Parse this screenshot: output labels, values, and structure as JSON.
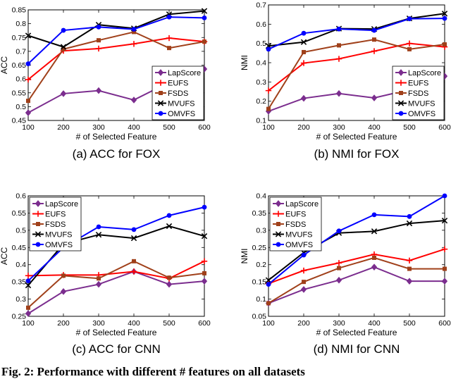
{
  "figure_caption": "Fig. 2: Performance with different # features on all datasets",
  "marker_styles": {
    "LapScore": {
      "color": "#7b2d8e",
      "marker": "diamond"
    },
    "EUFS": {
      "color": "#ff0000",
      "marker": "plus"
    },
    "FSDS": {
      "color": "#a0401a",
      "marker": "square"
    },
    "MVUFS": {
      "color": "#000000",
      "marker": "cross"
    },
    "OMVFS": {
      "color": "#0000ff",
      "marker": "circle"
    }
  },
  "chart_data": [
    {
      "type": "line",
      "caption": "(a) ACC for FOX",
      "xlabel": "# of Selected Feature",
      "ylabel": "ACC",
      "x": [
        100,
        200,
        300,
        400,
        500,
        600
      ],
      "xlim": [
        100,
        600
      ],
      "ylim": [
        0.45,
        0.85
      ],
      "xticks": [
        "100",
        "200",
        "300",
        "400",
        "500",
        "600"
      ],
      "yticks": [
        "0.45",
        "0.5",
        "0.55",
        "0.6",
        "0.65",
        "0.7",
        "0.75",
        "0.8",
        "0.85"
      ],
      "legend_position": "bottom-right",
      "series": [
        {
          "name": "LapScore",
          "values": [
            0.478,
            0.547,
            0.558,
            0.524,
            0.588,
            0.636
          ]
        },
        {
          "name": "EUFS",
          "values": [
            0.598,
            0.702,
            0.71,
            0.727,
            0.748,
            0.735
          ]
        },
        {
          "name": "FSDS",
          "values": [
            0.521,
            0.708,
            0.74,
            0.77,
            0.712,
            0.735
          ]
        },
        {
          "name": "MVUFS",
          "values": [
            0.757,
            0.716,
            0.796,
            0.783,
            0.834,
            0.846
          ]
        },
        {
          "name": "OMVFS",
          "values": [
            0.655,
            0.776,
            0.788,
            0.78,
            0.824,
            0.821
          ]
        }
      ]
    },
    {
      "type": "line",
      "caption": "(b) NMI for FOX",
      "xlabel": "# of Selected Feature",
      "ylabel": "NMI",
      "x": [
        100,
        200,
        300,
        400,
        500,
        600
      ],
      "xlim": [
        100,
        600
      ],
      "ylim": [
        0.1,
        0.7
      ],
      "xticks": [
        "100",
        "200",
        "300",
        "400",
        "500",
        "600"
      ],
      "yticks": [
        "0.1",
        "0.2",
        "0.3",
        "0.4",
        "0.5",
        "0.6",
        "0.7"
      ],
      "legend_position": "bottom-right",
      "series": [
        {
          "name": "LapScore",
          "values": [
            0.148,
            0.215,
            0.24,
            0.217,
            0.26,
            0.33
          ]
        },
        {
          "name": "EUFS",
          "values": [
            0.255,
            0.398,
            0.42,
            0.46,
            0.5,
            0.482
          ]
        },
        {
          "name": "FSDS",
          "values": [
            0.16,
            0.455,
            0.49,
            0.52,
            0.47,
            0.495
          ]
        },
        {
          "name": "MVUFS",
          "values": [
            0.487,
            0.507,
            0.577,
            0.575,
            0.63,
            0.655
          ]
        },
        {
          "name": "OMVFS",
          "values": [
            0.47,
            0.553,
            0.575,
            0.568,
            0.628,
            0.63
          ]
        }
      ]
    },
    {
      "type": "line",
      "caption": "(c) ACC for CNN",
      "xlabel": "# of Selected Feature",
      "ylabel": "ACC",
      "x": [
        100,
        200,
        300,
        400,
        500,
        600
      ],
      "xlim": [
        100,
        600
      ],
      "ylim": [
        0.25,
        0.6
      ],
      "xticks": [
        "100",
        "200",
        "300",
        "400",
        "500",
        "600"
      ],
      "yticks": [
        "0.25",
        "0.3",
        "0.35",
        "0.4",
        "0.45",
        "0.5",
        "0.55",
        "0.6"
      ],
      "legend_position": "top-left",
      "series": [
        {
          "name": "LapScore",
          "values": [
            0.258,
            0.322,
            0.343,
            0.38,
            0.343,
            0.352
          ]
        },
        {
          "name": "EUFS",
          "values": [
            0.368,
            0.37,
            0.37,
            0.38,
            0.36,
            0.41
          ]
        },
        {
          "name": "FSDS",
          "values": [
            0.275,
            0.368,
            0.36,
            0.41,
            0.362,
            0.375
          ]
        },
        {
          "name": "MVUFS",
          "values": [
            0.34,
            0.46,
            0.487,
            0.477,
            0.512,
            0.483
          ]
        },
        {
          "name": "OMVFS",
          "values": [
            0.353,
            0.45,
            0.51,
            0.502,
            0.543,
            0.567
          ]
        }
      ]
    },
    {
      "type": "line",
      "caption": "(d) NMI for CNN",
      "xlabel": "# of Selected Feature",
      "ylabel": "NMI",
      "x": [
        100,
        200,
        300,
        400,
        500,
        600
      ],
      "xlim": [
        100,
        600
      ],
      "ylim": [
        0.05,
        0.4
      ],
      "xticks": [
        "100",
        "200",
        "300",
        "400",
        "500",
        "600"
      ],
      "yticks": [
        "0.05",
        "0.1",
        "0.15",
        "0.2",
        "0.25",
        "0.3",
        "0.35",
        "0.4"
      ],
      "legend_position": "top-left",
      "series": [
        {
          "name": "LapScore",
          "values": [
            0.088,
            0.128,
            0.155,
            0.193,
            0.152,
            0.152
          ]
        },
        {
          "name": "EUFS",
          "values": [
            0.145,
            0.183,
            0.205,
            0.23,
            0.212,
            0.245
          ]
        },
        {
          "name": "FSDS",
          "values": [
            0.088,
            0.15,
            0.19,
            0.22,
            0.188,
            0.188
          ]
        },
        {
          "name": "MVUFS",
          "values": [
            0.155,
            0.235,
            0.292,
            0.297,
            0.32,
            0.328
          ]
        },
        {
          "name": "OMVFS",
          "values": [
            0.143,
            0.228,
            0.298,
            0.345,
            0.34,
            0.4
          ]
        }
      ]
    }
  ]
}
